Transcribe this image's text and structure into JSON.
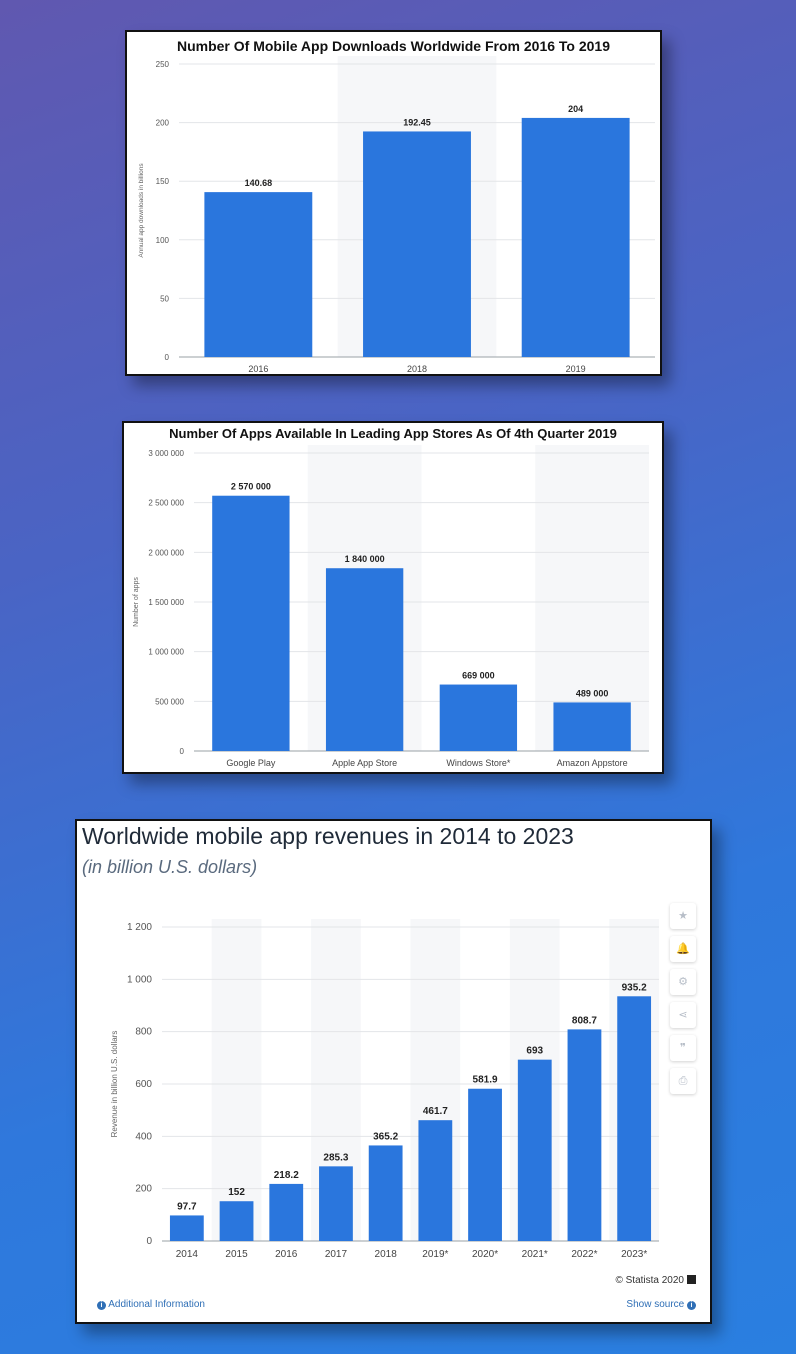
{
  "chart_data": [
    {
      "type": "bar",
      "title": "Number Of Mobile App Downloads Worldwide From 2016 To 2019",
      "ylabel": "Annual app downloads in billions",
      "xlabel": "",
      "categories": [
        "2016",
        "2018",
        "2019"
      ],
      "values": [
        140.68,
        192.45,
        204
      ],
      "value_labels": [
        "140.68",
        "192.45",
        "204"
      ],
      "ylim": [
        0,
        250
      ],
      "yticks": [
        0,
        50,
        100,
        150,
        200,
        250
      ],
      "ytick_labels": [
        "0",
        "50",
        "100",
        "150",
        "200",
        "250"
      ],
      "grid": true,
      "bar_color": "#2a76dd"
    },
    {
      "type": "bar",
      "title": "Number Of Apps Available In Leading App Stores As Of 4th Quarter 2019",
      "ylabel": "Number of apps",
      "xlabel": "",
      "categories": [
        "Google Play",
        "Apple App Store",
        "Windows Store*",
        "Amazon Appstore"
      ],
      "values": [
        2570000,
        1840000,
        669000,
        489000
      ],
      "value_labels": [
        "2 570 000",
        "1 840 000",
        "669 000",
        "489 000"
      ],
      "ylim": [
        0,
        3000000
      ],
      "yticks": [
        0,
        500000,
        1000000,
        1500000,
        2000000,
        2500000,
        3000000
      ],
      "ytick_labels": [
        "0",
        "500 000",
        "1 000 000",
        "1 500 000",
        "2 000 000",
        "2 500 000",
        "3 000 000"
      ],
      "grid": true,
      "bar_color": "#2a76dd"
    },
    {
      "type": "bar",
      "title": "Worldwide mobile app revenues in 2014 to 2023",
      "subtitle": "(in billion U.S. dollars)",
      "ylabel": "Revenue in billion U.S. dollars",
      "xlabel": "",
      "categories": [
        "2014",
        "2015",
        "2016",
        "2017",
        "2018",
        "2019*",
        "2020*",
        "2021*",
        "2022*",
        "2023*"
      ],
      "values": [
        97.7,
        152,
        218.2,
        285.3,
        365.2,
        461.7,
        581.9,
        693,
        808.7,
        935.2
      ],
      "value_labels": [
        "97.7",
        "152",
        "218.2",
        "285.3",
        "365.2",
        "461.7",
        "581.9",
        "693",
        "808.7",
        "935.2"
      ],
      "ylim": [
        0,
        1200
      ],
      "yticks": [
        0,
        200,
        400,
        600,
        800,
        1000,
        1200
      ],
      "ytick_labels": [
        "0",
        "200",
        "400",
        "600",
        "800",
        "1 000",
        "1 200"
      ],
      "grid": true,
      "bar_color": "#2a76dd"
    }
  ],
  "footer": {
    "credit": "© Statista 2020",
    "additional_info": "Additional Information",
    "show_source": "Show source"
  },
  "tools": [
    {
      "icon": "star-icon",
      "glyph": "★"
    },
    {
      "icon": "bell-icon",
      "glyph": "🔔"
    },
    {
      "icon": "gear-icon",
      "glyph": "⚙"
    },
    {
      "icon": "share-icon",
      "glyph": "⋖"
    },
    {
      "icon": "quote-icon",
      "glyph": "❞"
    },
    {
      "icon": "print-icon",
      "glyph": "⎙"
    }
  ]
}
